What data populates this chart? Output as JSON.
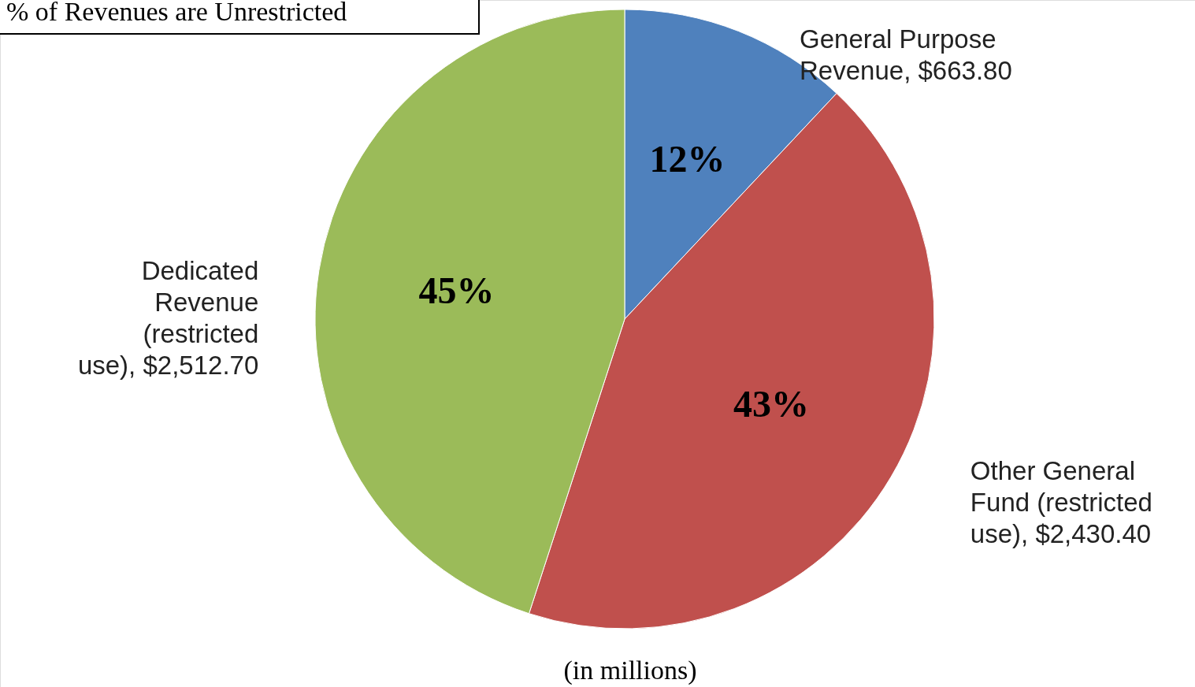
{
  "chart_data": {
    "type": "pie",
    "title": "% of Revenues are Unrestricted",
    "categories": [
      "General Purpose Revenue, $663.80",
      "Other General Fund (restricted use), $2,430.40",
      "Dedicated Revenue (restricted use), $2,512.70"
    ],
    "values": [
      12,
      43,
      45
    ],
    "value_labels": [
      "12%",
      "43%",
      "45%"
    ],
    "colors": [
      "#4f81bd",
      "#c0504d",
      "#9bbb59"
    ],
    "annotations": [
      "(in millions)"
    ]
  }
}
